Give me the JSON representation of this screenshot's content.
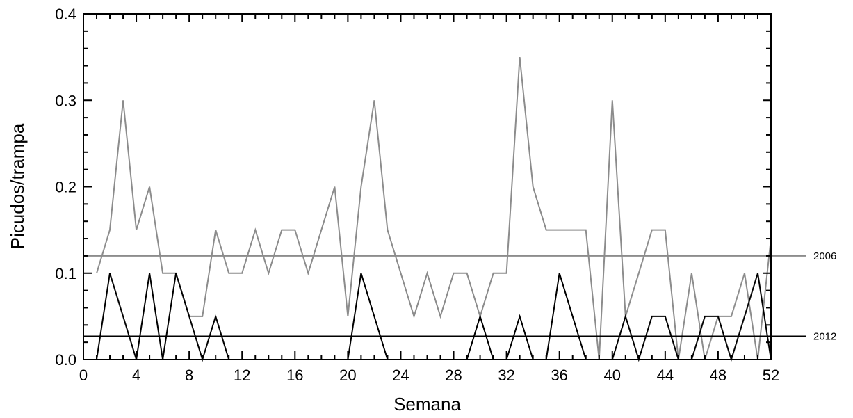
{
  "chart_data": {
    "type": "line",
    "xlabel": "Semana",
    "ylabel": "Picudos/trampa",
    "xlim": [
      0,
      52
    ],
    "ylim": [
      0,
      0.4
    ],
    "x_ticks": [
      0,
      4,
      8,
      12,
      16,
      20,
      24,
      28,
      32,
      36,
      40,
      44,
      48,
      52
    ],
    "y_ticks": [
      "0.0",
      "0.1",
      "0.2",
      "0.3",
      "0.4"
    ],
    "grid": false,
    "series": [
      {
        "color": "#8c8c8c",
        "x": [
          1,
          2,
          3,
          4,
          5,
          6,
          7,
          8,
          9,
          10,
          11,
          12,
          13,
          14,
          15,
          16,
          17,
          18,
          19,
          20,
          21,
          22,
          23,
          24,
          25,
          26,
          27,
          28,
          29,
          30,
          31,
          32,
          33,
          34,
          35,
          36,
          37,
          38,
          39,
          40,
          41,
          42,
          43,
          44,
          45,
          46,
          47,
          48,
          49,
          50,
          51,
          52
        ],
        "y": [
          0.1,
          0.15,
          0.3,
          0.15,
          0.2,
          0.1,
          0.1,
          0.05,
          0.05,
          0.15,
          0.1,
          0.1,
          0.15,
          0.1,
          0.15,
          0.15,
          0.1,
          0.15,
          0.2,
          0.05,
          0.2,
          0.3,
          0.15,
          0.1,
          0.05,
          0.1,
          0.05,
          0.1,
          0.1,
          0.05,
          0.1,
          0.1,
          0.35,
          0.2,
          0.15,
          0.15,
          0.15,
          0.15,
          0.0,
          0.3,
          0.05,
          0.1,
          0.15,
          0.15,
          0.0,
          0.1,
          0.0,
          0.05,
          0.05,
          0.1,
          0.0,
          0.14
        ]
      },
      {
        "color": "#000000",
        "x": [
          1,
          2,
          3,
          4,
          5,
          6,
          7,
          8,
          9,
          10,
          11,
          12,
          13,
          14,
          15,
          16,
          17,
          18,
          19,
          20,
          21,
          22,
          23,
          24,
          25,
          26,
          27,
          28,
          29,
          30,
          31,
          32,
          33,
          34,
          35,
          36,
          37,
          38,
          39,
          40,
          41,
          42,
          43,
          44,
          45,
          46,
          47,
          48,
          49,
          50,
          51,
          52
        ],
        "y": [
          0,
          0.1,
          0.05,
          0,
          0.1,
          0,
          0.1,
          0.05,
          0,
          0.05,
          0,
          0,
          0,
          0,
          0,
          0,
          0,
          0,
          0,
          0,
          0.1,
          0.05,
          0,
          0,
          0,
          0,
          0,
          0,
          0,
          0.05,
          0,
          0,
          0.05,
          0,
          0,
          0.1,
          0.05,
          0,
          0,
          0,
          0.05,
          0,
          0.05,
          0.05,
          0,
          0,
          0.05,
          0.05,
          0,
          0.05,
          0.1,
          0
        ]
      }
    ],
    "reference_lines": [
      {
        "label": "2006",
        "y": 0.12,
        "color": "#8c8c8c"
      },
      {
        "label": "2012",
        "y": 0.027,
        "color": "#000000"
      }
    ]
  }
}
